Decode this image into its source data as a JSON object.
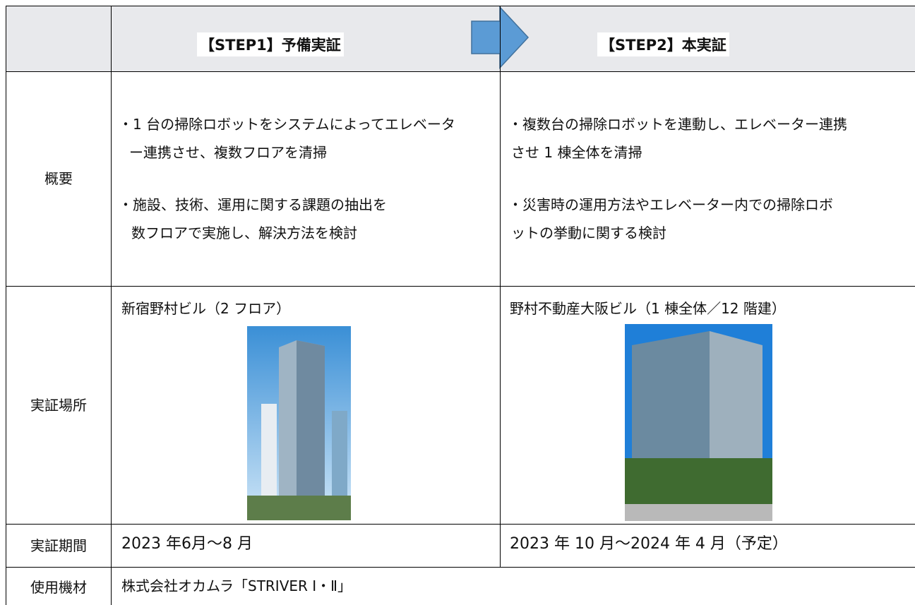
{
  "table": {
    "header": [
      "【STEP1】予備実証",
      "【STEP2】本実証"
    ],
    "rows": [
      {
        "label": "概要",
        "step1": [
          [
            "・1 台の掃除ロボットをシステムによってエレベータ",
            "ー連携させ、複数フロアを清掃"
          ],
          [
            "・施設、技術、運用に関する課題の抽出を",
            "数フロアで実施し、解決方法を検討"
          ]
        ],
        "step2": [
          [
            "・複数台の掃除ロボットを連動し、エレベーター連携",
            "させ 1 棟全体を清掃"
          ],
          [
            "・災害時の運用方法やエレベーター内での掃除ロボ",
            "ットの挙動に関する検討"
          ]
        ]
      },
      {
        "label": "実証場所",
        "step1": "新宿野村ビル（2 フロア）",
        "step2": "野村不動産大阪ビル（1 棟全体／12 階建）"
      },
      {
        "label": "実証期間",
        "step1": "2023 年6月～8 月",
        "step2": "2023 年 10 月～2024 年 4 月（予定）"
      },
      {
        "label": "使用機材",
        "value": "株式会社オカムラ「STRIVER Ⅰ・Ⅱ」"
      }
    ]
  }
}
